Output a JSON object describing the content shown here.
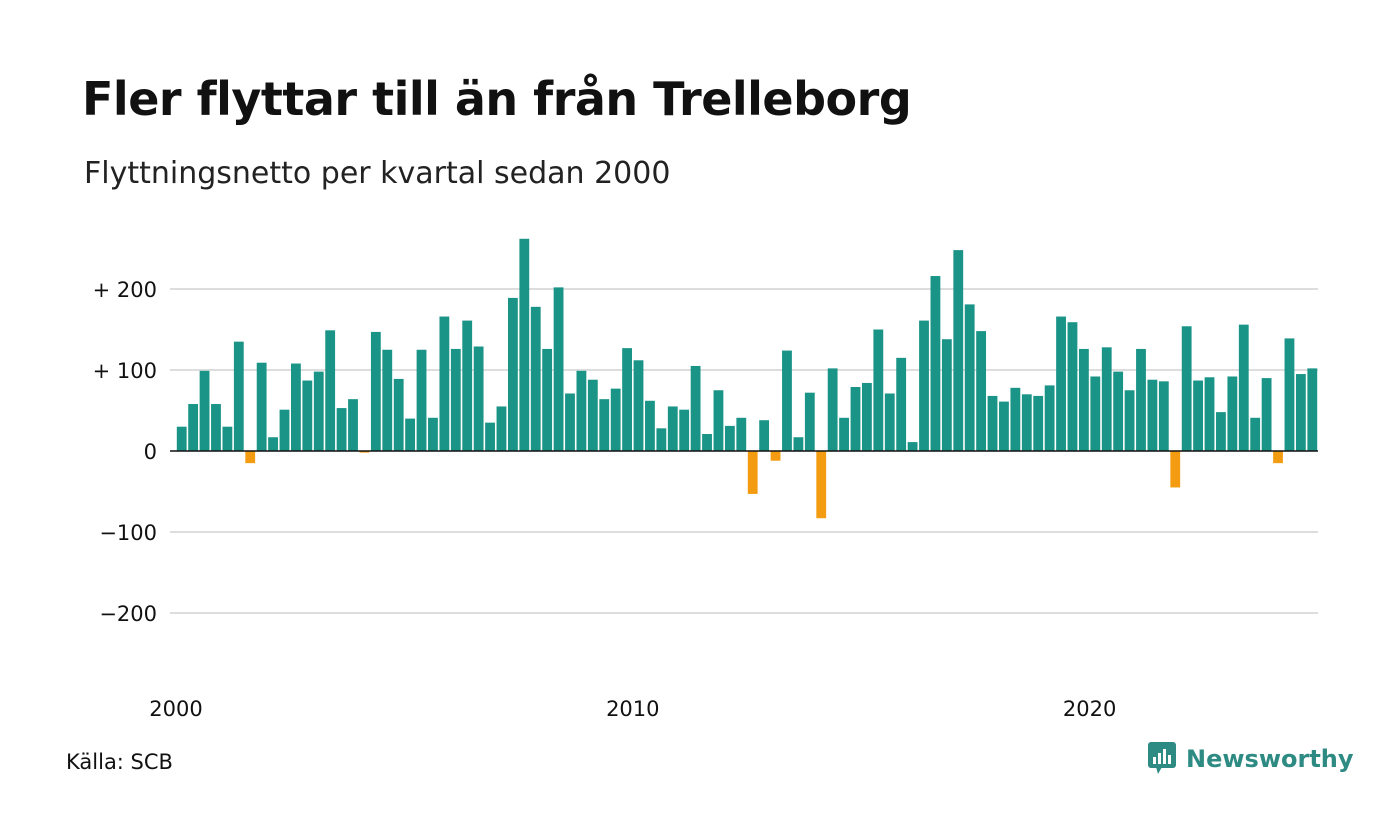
{
  "title": "Fler flyttar till än från Trelleborg",
  "subtitle": "Flyttningsnetto per kvartal sedan 2000",
  "source": "Källa: SCB",
  "brand": "Newsworthy",
  "colors": {
    "positive": "#1a9487",
    "negative": "#f39c12",
    "grid": "#dddddd",
    "brand": "#2e8b83"
  },
  "chart_data": {
    "type": "bar",
    "title": "Fler flyttar till än från Trelleborg",
    "subtitle": "Flyttningsnetto per kvartal sedan 2000",
    "x_start": "2000 Q1",
    "x_ticks": [
      "2000",
      "2010",
      "2020"
    ],
    "y_ticks": [
      {
        "value": 200,
        "label": "+ 200"
      },
      {
        "value": 100,
        "label": "+ 100"
      },
      {
        "value": 0,
        "label": "0"
      },
      {
        "value": -100,
        "label": "−100"
      },
      {
        "value": -200,
        "label": "−200"
      }
    ],
    "ylim": [
      -270,
      270
    ],
    "grid": true,
    "values": [
      30,
      58,
      99,
      58,
      30,
      135,
      -15,
      109,
      17,
      51,
      108,
      87,
      98,
      149,
      53,
      64,
      -2,
      147,
      125,
      89,
      40,
      125,
      41,
      166,
      126,
      161,
      129,
      35,
      55,
      189,
      262,
      178,
      126,
      202,
      71,
      99,
      88,
      64,
      77,
      127,
      112,
      62,
      28,
      55,
      51,
      105,
      21,
      75,
      31,
      41,
      -53,
      38,
      -12,
      124,
      17,
      72,
      -83,
      102,
      41,
      79,
      84,
      150,
      71,
      115,
      11,
      161,
      216,
      138,
      248,
      181,
      148,
      68,
      61,
      78,
      70,
      68,
      81,
      166,
      159,
      126,
      92,
      128,
      98,
      75,
      126,
      88,
      86,
      -45,
      154,
      87,
      91,
      48,
      92,
      156,
      41,
      90,
      -15,
      139,
      95,
      102
    ]
  }
}
